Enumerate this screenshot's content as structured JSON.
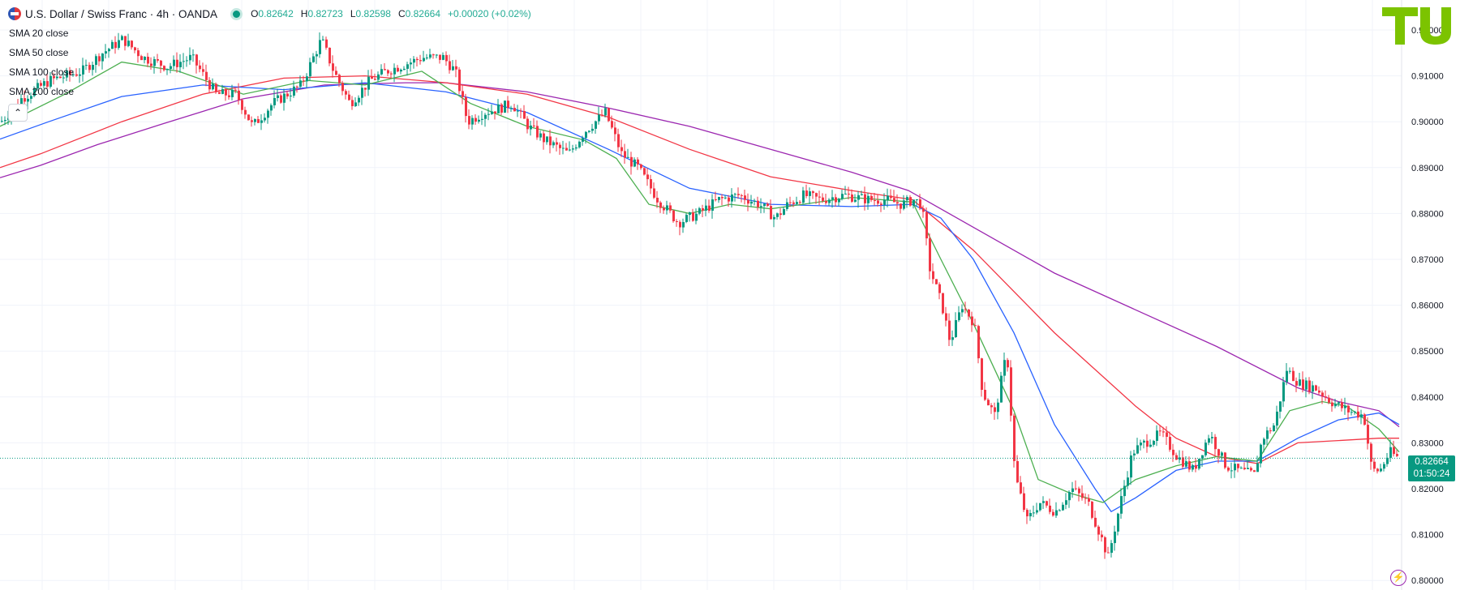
{
  "header": {
    "title": "U.S. Dollar / Swiss Franc · 4h · OANDA",
    "open_label": "O",
    "open": "0.82642",
    "high_label": "H",
    "high": "0.82723",
    "low_label": "L",
    "low": "0.82598",
    "close_label": "C",
    "close": "0.82664",
    "change": "+0.00020 (+0.02%)"
  },
  "indicators": [
    "SMA 20 close",
    "SMA 50 close",
    "SMA 100 close",
    "SMA 200 close"
  ],
  "collapse_icon": "chevron-up-icon",
  "last_price": {
    "value": "0.82664",
    "countdown": "01:50:24"
  },
  "logo_text": "TU",
  "colors": {
    "up": "#089981",
    "down": "#f23645",
    "sma20": "#4caf50",
    "sma50": "#2962ff",
    "sma100": "#f23645",
    "sma200": "#9c27b0",
    "grid": "#f0f3fa",
    "logo": "#7cc300"
  },
  "chart_data": {
    "type": "candlestick",
    "symbol": "USDCHF",
    "interval": "4h",
    "price_axis": {
      "ticks": [
        "0.92000",
        "0.91000",
        "0.90000",
        "0.89000",
        "0.88000",
        "0.87000",
        "0.86000",
        "0.85000",
        "0.84000",
        "0.83000",
        "0.82000",
        "0.81000",
        "0.80000"
      ],
      "range": [
        0.8,
        0.92
      ]
    },
    "close_path": [
      [
        0,
        0.9
      ],
      [
        25,
        0.905
      ],
      [
        60,
        0.909
      ],
      [
        100,
        0.911
      ],
      [
        125,
        0.915
      ],
      [
        150,
        0.918
      ],
      [
        175,
        0.914
      ],
      [
        205,
        0.912
      ],
      [
        235,
        0.914
      ],
      [
        265,
        0.906
      ],
      [
        290,
        0.906
      ],
      [
        310,
        0.899
      ],
      [
        335,
        0.904
      ],
      [
        370,
        0.908
      ],
      [
        395,
        0.918
      ],
      [
        410,
        0.911
      ],
      [
        430,
        0.904
      ],
      [
        455,
        0.909
      ],
      [
        475,
        0.911
      ],
      [
        490,
        0.912
      ],
      [
        520,
        0.914
      ],
      [
        545,
        0.914
      ],
      [
        560,
        0.911
      ],
      [
        575,
        0.9
      ],
      [
        595,
        0.902
      ],
      [
        615,
        0.903
      ],
      [
        630,
        0.904
      ],
      [
        650,
        0.899
      ],
      [
        670,
        0.896
      ],
      [
        700,
        0.893
      ],
      [
        720,
        0.898
      ],
      [
        745,
        0.902
      ],
      [
        765,
        0.893
      ],
      [
        785,
        0.89
      ],
      [
        810,
        0.883
      ],
      [
        835,
        0.878
      ],
      [
        860,
        0.88
      ],
      [
        885,
        0.883
      ],
      [
        910,
        0.884
      ],
      [
        935,
        0.882
      ],
      [
        955,
        0.879
      ],
      [
        970,
        0.882
      ],
      [
        990,
        0.884
      ],
      [
        1010,
        0.883
      ],
      [
        1040,
        0.884
      ],
      [
        1070,
        0.883
      ],
      [
        1090,
        0.883
      ],
      [
        1110,
        0.882
      ],
      [
        1125,
        0.883
      ],
      [
        1140,
        0.883
      ],
      [
        1125,
        0.882
      ],
      [
        1135,
        0.8805
      ]
    ],
    "series": [
      {
        "name": "SMA 20 close",
        "color": "#4caf50"
      },
      {
        "name": "SMA 50 close",
        "color": "#2962ff"
      },
      {
        "name": "SMA 100 close",
        "color": "#f23645"
      },
      {
        "name": "SMA 200 close",
        "color": "#9c27b0"
      }
    ],
    "sma200": [
      [
        0,
        0.8878
      ],
      [
        50,
        0.8905
      ],
      [
        120,
        0.895
      ],
      [
        200,
        0.8995
      ],
      [
        300,
        0.905
      ],
      [
        400,
        0.908
      ],
      [
        500,
        0.9085
      ],
      [
        550,
        0.9085
      ],
      [
        650,
        0.9065
      ],
      [
        750,
        0.903
      ],
      [
        850,
        0.899
      ],
      [
        950,
        0.894
      ],
      [
        1050,
        0.889
      ],
      [
        1120,
        0.885
      ],
      [
        1200,
        0.877
      ],
      [
        1300,
        0.867
      ],
      [
        1400,
        0.859
      ],
      [
        1500,
        0.851
      ],
      [
        1600,
        0.842
      ],
      [
        1650,
        0.839
      ],
      [
        1700,
        0.837
      ],
      [
        1725,
        0.8335
      ]
    ],
    "sma100": [
      [
        0,
        0.89
      ],
      [
        50,
        0.893
      ],
      [
        150,
        0.9
      ],
      [
        250,
        0.906
      ],
      [
        350,
        0.9095
      ],
      [
        450,
        0.91
      ],
      [
        550,
        0.9085
      ],
      [
        650,
        0.906
      ],
      [
        750,
        0.901
      ],
      [
        850,
        0.894
      ],
      [
        950,
        0.888
      ],
      [
        1050,
        0.885
      ],
      [
        1125,
        0.883
      ],
      [
        1200,
        0.872
      ],
      [
        1300,
        0.854
      ],
      [
        1400,
        0.838
      ],
      [
        1450,
        0.831
      ],
      [
        1500,
        0.827
      ],
      [
        1550,
        0.8255
      ],
      [
        1600,
        0.83
      ],
      [
        1650,
        0.8305
      ],
      [
        1700,
        0.831
      ],
      [
        1725,
        0.831
      ]
    ],
    "sma50": [
      [
        0,
        0.8962
      ],
      [
        60,
        0.9
      ],
      [
        150,
        0.9055
      ],
      [
        250,
        0.908
      ],
      [
        350,
        0.907
      ],
      [
        450,
        0.9085
      ],
      [
        550,
        0.9065
      ],
      [
        650,
        0.902
      ],
      [
        750,
        0.894
      ],
      [
        850,
        0.8855
      ],
      [
        950,
        0.882
      ],
      [
        1050,
        0.8815
      ],
      [
        1125,
        0.882
      ],
      [
        1160,
        0.879
      ],
      [
        1200,
        0.87
      ],
      [
        1250,
        0.854
      ],
      [
        1300,
        0.834
      ],
      [
        1350,
        0.82
      ],
      [
        1370,
        0.815
      ],
      [
        1400,
        0.818
      ],
      [
        1450,
        0.824
      ],
      [
        1500,
        0.826
      ],
      [
        1550,
        0.826
      ],
      [
        1600,
        0.831
      ],
      [
        1650,
        0.835
      ],
      [
        1700,
        0.8365
      ],
      [
        1725,
        0.834
      ]
    ],
    "sma20": [
      [
        0,
        0.899
      ],
      [
        80,
        0.906
      ],
      [
        150,
        0.913
      ],
      [
        220,
        0.911
      ],
      [
        300,
        0.906
      ],
      [
        380,
        0.909
      ],
      [
        450,
        0.908
      ],
      [
        520,
        0.911
      ],
      [
        580,
        0.904
      ],
      [
        650,
        0.899
      ],
      [
        720,
        0.896
      ],
      [
        760,
        0.892
      ],
      [
        800,
        0.882
      ],
      [
        850,
        0.88
      ],
      [
        900,
        0.882
      ],
      [
        950,
        0.881
      ],
      [
        1050,
        0.8835
      ],
      [
        1125,
        0.8825
      ],
      [
        1160,
        0.87
      ],
      [
        1200,
        0.856
      ],
      [
        1250,
        0.837
      ],
      [
        1280,
        0.822
      ],
      [
        1320,
        0.819
      ],
      [
        1360,
        0.817
      ],
      [
        1400,
        0.822
      ],
      [
        1450,
        0.825
      ],
      [
        1500,
        0.827
      ],
      [
        1550,
        0.826
      ],
      [
        1590,
        0.837
      ],
      [
        1630,
        0.839
      ],
      [
        1660,
        0.838
      ],
      [
        1700,
        0.833
      ],
      [
        1725,
        0.828
      ]
    ]
  }
}
